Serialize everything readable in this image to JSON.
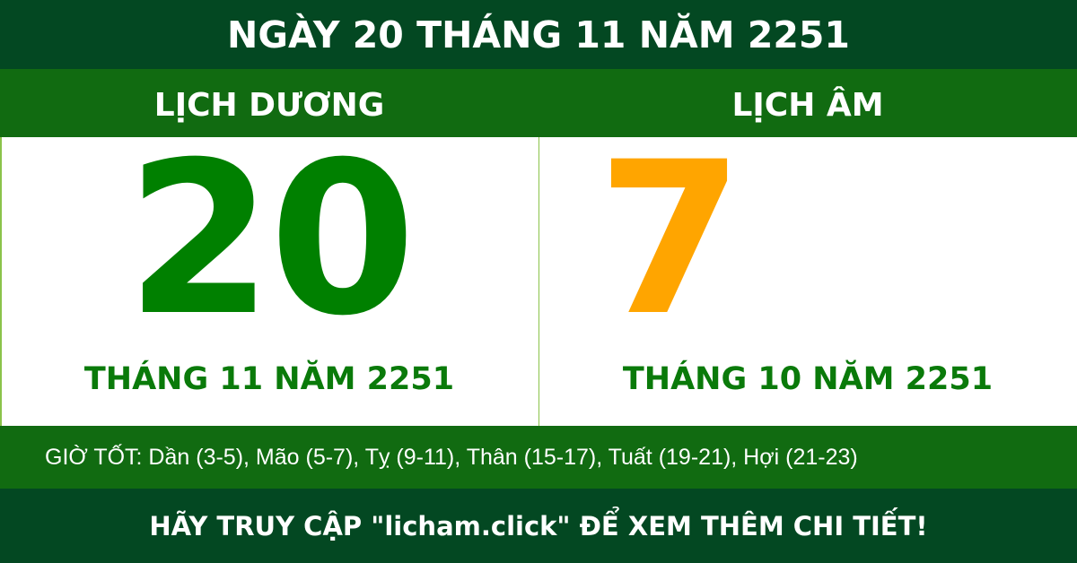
{
  "title": "NGÀY 20 THÁNG 11 NĂM 2251",
  "solar": {
    "label": "LỊCH DƯƠNG",
    "day": "20",
    "month_year": "THÁNG 11 NĂM 2251",
    "color": "#008000"
  },
  "lunar": {
    "label": "LỊCH ÂM",
    "day": "7",
    "month_year": "THÁNG 10 NĂM 2251",
    "color": "#ffa500"
  },
  "good_hours": "GIỜ TỐT: Dần (3-5), Mão (5-7), Tỵ (9-11), Thân (15-17), Tuất (19-21), Hợi (21-23)",
  "footer": "HÃY TRUY CẬP \"licham.click\" ĐỂ XEM THÊM CHI TIẾT!"
}
